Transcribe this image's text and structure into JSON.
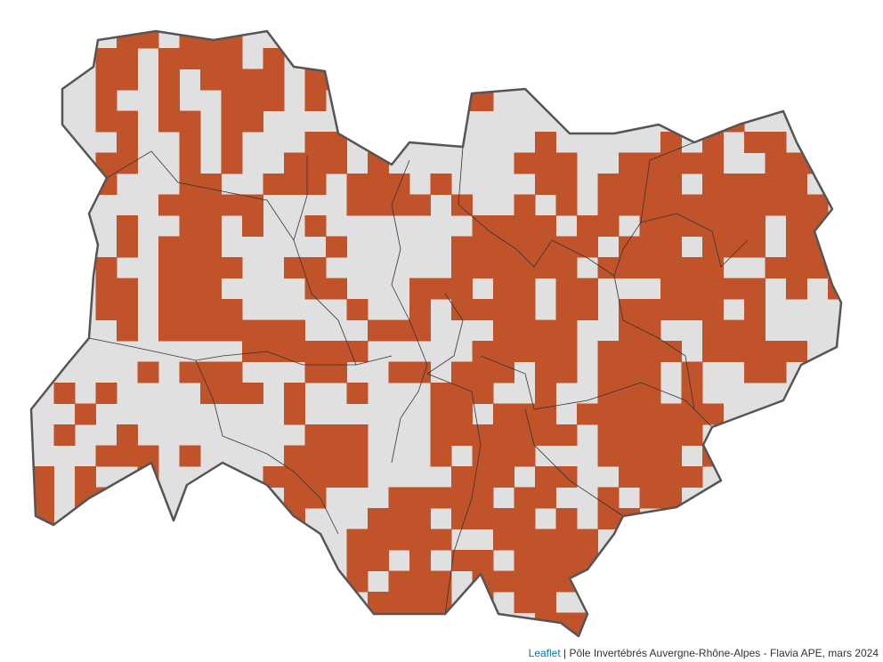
{
  "map": {
    "region": "Auvergne-Rhône-Alpes",
    "colors": {
      "presence_cell": "#c0532a",
      "region_fill": "#e0e0e0",
      "region_border": "#555555",
      "department_border": "#333333"
    }
  },
  "attribution": {
    "link_label": "Leaflet",
    "separator": "|",
    "text": "Pôle Invertébrés Auvergne-Rhône-Alpes - Flavia APE, mars 2024"
  }
}
